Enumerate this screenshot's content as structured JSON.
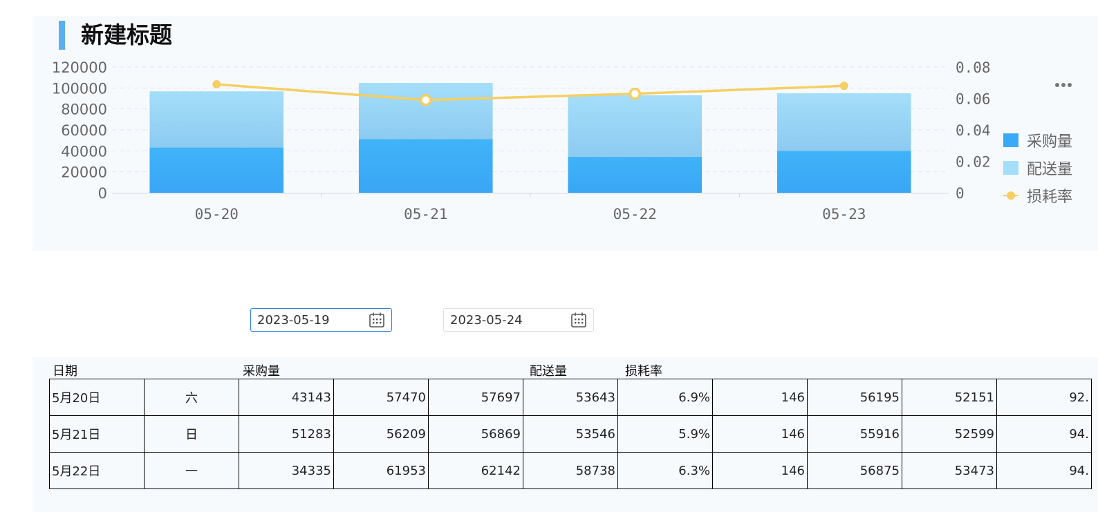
{
  "chart": {
    "title": "新建标题",
    "more_icon": "more-horizontal-icon",
    "colors": {
      "purchase_top": "#3fb3f8",
      "purchase_bottom": "#3aa6f5",
      "delivery_top": "#a4defa",
      "delivery_bottom": "#8ccaf0",
      "loss_line": "#f5cf63",
      "axis_text": "#666666",
      "grid": "#dfe6ee"
    },
    "legend": [
      {
        "label": "采购量",
        "type": "bar"
      },
      {
        "label": "配送量",
        "type": "bar"
      },
      {
        "label": "损耗率",
        "type": "line"
      }
    ]
  },
  "chart_data": {
    "type": "bar",
    "stacked": true,
    "categories": [
      "05-20",
      "05-21",
      "05-22",
      "05-23"
    ],
    "series": [
      {
        "name": "采购量",
        "type": "bar",
        "axis": "left",
        "values": [
          43143,
          51283,
          34335,
          40000
        ]
      },
      {
        "name": "配送量",
        "type": "bar",
        "axis": "left",
        "values": [
          53643,
          53546,
          58738,
          55000
        ]
      },
      {
        "name": "损耗率",
        "type": "line",
        "axis": "right",
        "values": [
          0.069,
          0.059,
          0.063,
          0.068
        ]
      }
    ],
    "ylim": [
      0,
      120000
    ],
    "yticks": [
      "0",
      "20000",
      "40000",
      "60000",
      "80000",
      "100000",
      "120000"
    ],
    "y2lim": [
      0,
      0.08
    ],
    "y2ticks": [
      "0",
      "0.02",
      "0.04",
      "0.06",
      "0.08"
    ],
    "grid": true,
    "legend_position": "right"
  },
  "filters": {
    "start_date": "2023-05-19",
    "end_date": "2023-05-24",
    "icon": "calendar-icon"
  },
  "table": {
    "headers": [
      "日期",
      "采购量",
      "配送量",
      "损耗率"
    ],
    "rows": [
      [
        "5月20日",
        "六",
        "43143",
        "57470",
        "57697",
        "53643",
        "6.9%",
        "146",
        "56195",
        "52151",
        "92."
      ],
      [
        "5月21日",
        "日",
        "51283",
        "56209",
        "56869",
        "53546",
        "5.9%",
        "146",
        "55916",
        "52599",
        "94."
      ],
      [
        "5月22日",
        "一",
        "34335",
        "61953",
        "62142",
        "58738",
        "6.3%",
        "146",
        "56875",
        "53473",
        "94."
      ]
    ]
  }
}
